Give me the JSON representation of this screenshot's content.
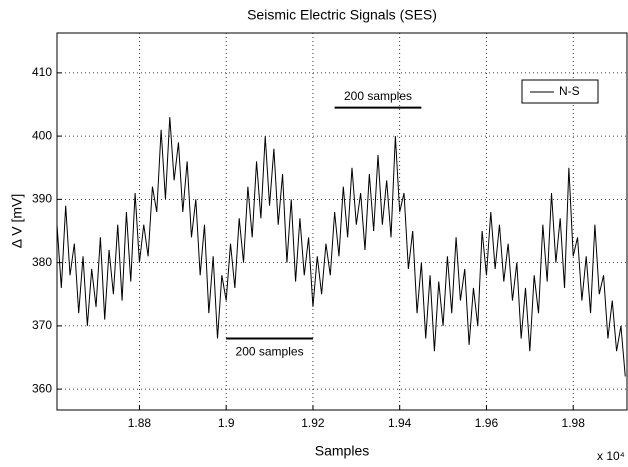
{
  "chart_data": {
    "type": "line",
    "title": "Seismic Electric Signals (SES)",
    "xlabel": "Samples",
    "ylabel": "Δ V [mV]",
    "x_multiplier": "x 10⁴",
    "x": [
      1.861,
      1.862,
      1.863,
      1.864,
      1.865,
      1.866,
      1.867,
      1.868,
      1.869,
      1.87,
      1.871,
      1.872,
      1.873,
      1.874,
      1.875,
      1.876,
      1.877,
      1.878,
      1.879,
      1.88,
      1.881,
      1.882,
      1.883,
      1.884,
      1.885,
      1.886,
      1.887,
      1.888,
      1.889,
      1.89,
      1.891,
      1.892,
      1.893,
      1.894,
      1.895,
      1.896,
      1.897,
      1.898,
      1.899,
      1.9,
      1.901,
      1.902,
      1.903,
      1.904,
      1.905,
      1.906,
      1.907,
      1.908,
      1.909,
      1.91,
      1.911,
      1.912,
      1.913,
      1.914,
      1.915,
      1.916,
      1.917,
      1.918,
      1.919,
      1.92,
      1.921,
      1.922,
      1.923,
      1.924,
      1.925,
      1.926,
      1.927,
      1.928,
      1.929,
      1.93,
      1.931,
      1.932,
      1.933,
      1.934,
      1.935,
      1.936,
      1.937,
      1.938,
      1.939,
      1.94,
      1.941,
      1.942,
      1.943,
      1.944,
      1.945,
      1.946,
      1.947,
      1.948,
      1.949,
      1.95,
      1.951,
      1.952,
      1.953,
      1.954,
      1.955,
      1.956,
      1.957,
      1.958,
      1.959,
      1.96,
      1.961,
      1.962,
      1.963,
      1.964,
      1.965,
      1.966,
      1.967,
      1.968,
      1.969,
      1.97,
      1.971,
      1.972,
      1.973,
      1.974,
      1.975,
      1.976,
      1.977,
      1.978,
      1.979,
      1.98,
      1.981,
      1.982,
      1.983,
      1.984,
      1.985,
      1.986,
      1.987,
      1.988,
      1.989,
      1.99,
      1.991,
      1.992
    ],
    "series": [
      {
        "name": "N-S",
        "color": "#000000",
        "values": [
          386,
          376,
          389,
          378,
          383,
          372,
          381,
          370,
          379,
          373,
          384,
          371,
          382,
          375,
          386,
          374,
          388,
          377,
          391,
          380,
          386,
          381,
          392,
          388,
          401,
          390,
          403,
          393,
          399,
          388,
          396,
          384,
          390,
          378,
          386,
          372,
          381,
          368,
          378,
          374,
          383,
          376,
          387,
          380,
          392,
          384,
          396,
          387,
          400,
          389,
          398,
          386,
          394,
          380,
          390,
          377,
          387,
          378,
          384,
          373,
          381,
          375,
          383,
          378,
          388,
          381,
          392,
          384,
          395,
          386,
          391,
          382,
          394,
          385,
          397,
          386,
          393,
          384,
          400,
          388,
          391,
          379,
          385,
          372,
          380,
          368,
          378,
          366,
          377,
          370,
          381,
          372,
          384,
          374,
          379,
          367,
          376,
          370,
          385,
          378,
          388,
          379,
          386,
          377,
          383,
          374,
          380,
          368,
          376,
          366,
          378,
          372,
          386,
          377,
          391,
          380,
          387,
          376,
          395,
          381,
          384,
          374,
          381,
          372,
          386,
          375,
          378,
          368,
          374,
          366,
          370,
          362
        ]
      }
    ],
    "annotations": [
      {
        "text": "200 samples",
        "x": [
          1.9,
          1.92
        ],
        "y": 368
      },
      {
        "text": "200 samples",
        "x": [
          1.925,
          1.945
        ],
        "y": 404.5
      }
    ],
    "xlim": [
      1.861,
      1.9924
    ],
    "ylim": [
      356.7,
      416.3
    ],
    "xticks": [
      1.88,
      1.9,
      1.92,
      1.94,
      1.96,
      1.98
    ],
    "yticks": [
      360,
      370,
      380,
      390,
      400,
      410
    ],
    "grid": true,
    "legend": "upper right"
  }
}
